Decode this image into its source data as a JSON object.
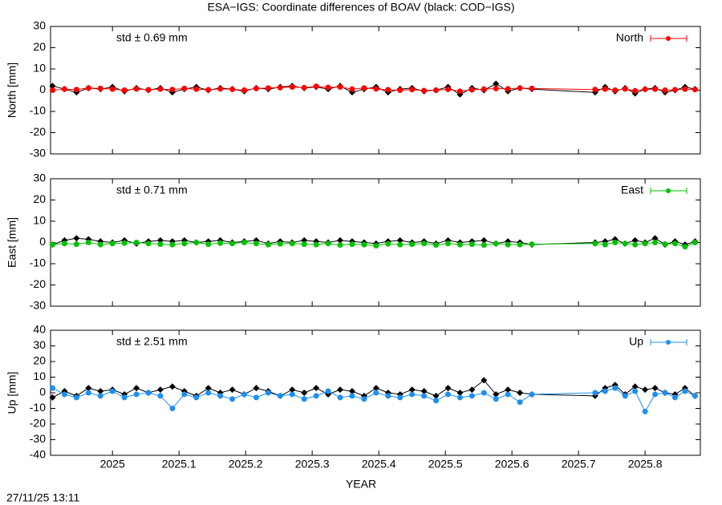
{
  "title": "ESA−IGS: Coordinate differences of BOAV (black: COD−IGS)",
  "timestamp": "27/11/25 13:11",
  "xlabel": "YEAR",
  "xlim": [
    2024.907,
    2025.883
  ],
  "xticks": [
    2025,
    2025.1,
    2025.2,
    2025.3,
    2025.4,
    2025.5,
    2025.6,
    2025.7,
    2025.8
  ],
  "x": [
    2024.91,
    2024.928,
    2024.946,
    2024.964,
    2024.982,
    2025.0,
    2025.018,
    2025.036,
    2025.054,
    2025.072,
    2025.09,
    2025.108,
    2025.126,
    2025.144,
    2025.162,
    2025.18,
    2025.198,
    2025.216,
    2025.234,
    2025.252,
    2025.27,
    2025.288,
    2025.306,
    2025.324,
    2025.342,
    2025.36,
    2025.378,
    2025.396,
    2025.414,
    2025.432,
    2025.45,
    2025.468,
    2025.486,
    2025.504,
    2025.522,
    2025.54,
    2025.558,
    2025.576,
    2025.594,
    2025.612,
    2025.63,
    2025.725,
    2025.74,
    2025.755,
    2025.77,
    2025.785,
    2025.8,
    2025.815,
    2025.83,
    2025.845,
    2025.86,
    2025.875
  ],
  "chart_data": [
    {
      "type": "line",
      "ylabel": "North [mm]",
      "annotation": "std ± 0.69 mm",
      "ylim": [
        -30,
        30
      ],
      "yticks": [
        -30,
        -20,
        -10,
        0,
        10,
        20,
        30
      ],
      "series": [
        {
          "color": "#000000",
          "values": [
            2,
            0.5,
            -1,
            1,
            0.5,
            1.5,
            -0.5,
            1,
            0,
            1,
            -1,
            0.5,
            1.5,
            0,
            1,
            0.5,
            -0.5,
            1,
            0.5,
            1.5,
            2,
            1,
            1.5,
            0.5,
            2,
            -1,
            0.5,
            1.5,
            -1,
            0.5,
            1,
            -0.5,
            0,
            1.5,
            -2,
            1,
            0,
            3,
            -0.5,
            1,
            0.5,
            -1,
            1.5,
            -0.5,
            1,
            -1.5,
            0.5,
            1,
            -1,
            0,
            1.5,
            0.5
          ]
        },
        {
          "name": "North",
          "color": "#ff0000",
          "values": [
            0,
            0.5,
            0.3,
            1,
            0.8,
            0.5,
            0,
            0.6,
            0.2,
            0.5,
            0.3,
            0.8,
            0.5,
            0.2,
            0.6,
            0.4,
            0,
            0.8,
            1,
            1.2,
            1.5,
            1.2,
            1.8,
            1.3,
            1.5,
            0.5,
            1,
            0.6,
            0.2,
            0,
            0.3,
            -0.2,
            0,
            0.4,
            -0.5,
            0.2,
            0.5,
            0.8,
            0.6,
            1,
            0.8,
            0.3,
            0.5,
            0,
            0.6,
            -0.3,
            0.4,
            0.5,
            0,
            0.2,
            0.5,
            0.3
          ]
        }
      ]
    },
    {
      "type": "line",
      "ylabel": "East [mm]",
      "annotation": "std ± 0.71 mm",
      "ylim": [
        -30,
        30
      ],
      "yticks": [
        -30,
        -20,
        -10,
        0,
        10,
        20,
        30
      ],
      "series": [
        {
          "color": "#000000",
          "values": [
            -1,
            1,
            2,
            1.5,
            0.5,
            0,
            1,
            -0.5,
            0.5,
            1,
            0.5,
            1,
            0,
            0.5,
            1,
            0,
            0.5,
            1,
            -0.5,
            0.5,
            0,
            1,
            0.5,
            0,
            1,
            0.5,
            0,
            -0.5,
            0.5,
            1,
            0,
            0.5,
            -0.5,
            1,
            0,
            0.5,
            1,
            -0.5,
            0.5,
            0,
            -1,
            0,
            0.5,
            1.5,
            -0.5,
            1,
            0,
            2,
            -1,
            0.5,
            -1,
            0.5
          ]
        },
        {
          "name": "East",
          "color": "#00c000",
          "values": [
            -1,
            -0.5,
            -0.8,
            0,
            -1,
            -0.5,
            -0.3,
            0,
            -0.5,
            -0.8,
            -1,
            -0.5,
            0,
            -0.8,
            -0.3,
            -0.5,
            0,
            -0.5,
            -1,
            -0.6,
            -0.5,
            -0.8,
            -1,
            -0.5,
            -1.2,
            -0.8,
            -1,
            -1.5,
            -0.6,
            -1,
            -0.8,
            -0.5,
            -1.2,
            -0.5,
            -1,
            -0.8,
            -1.2,
            -0.5,
            -1,
            -1,
            -0.8,
            -0.5,
            -1,
            0,
            -0.5,
            -1,
            -0.5,
            0,
            -0.8,
            -0.5,
            -2,
            0
          ]
        }
      ]
    },
    {
      "type": "line",
      "ylabel": "Up [mm]",
      "annotation": "std ± 2.51 mm",
      "ylim": [
        -40,
        40
      ],
      "yticks": [
        -40,
        -30,
        -20,
        -10,
        0,
        10,
        20,
        30,
        40
      ],
      "series": [
        {
          "color": "#000000",
          "values": [
            -3,
            1,
            -2,
            3,
            1,
            2,
            -1,
            3,
            0,
            2,
            4,
            1,
            -2,
            3,
            0,
            2,
            -1,
            3,
            1,
            -2,
            2,
            0,
            3,
            -1,
            2,
            1,
            -2,
            3,
            0,
            -1,
            2,
            1,
            -2,
            3,
            0,
            2,
            8,
            -1,
            2,
            0,
            -1,
            -2,
            3,
            5,
            -1,
            4,
            2,
            3,
            0,
            -1,
            3,
            -2
          ]
        },
        {
          "name": "Up",
          "color": "#1e8ff0",
          "values": [
            3,
            -1,
            -3,
            0,
            -2,
            1,
            -3,
            -1,
            0,
            -2,
            -10,
            -1,
            -3,
            0,
            -2,
            -4,
            -1,
            -3,
            0,
            -2,
            -1,
            -4,
            -2,
            1,
            -3,
            -2,
            -4,
            0,
            -2,
            -3,
            -1,
            -2,
            -5,
            -1,
            -3,
            -2,
            0,
            -4,
            -1,
            -6,
            -1,
            0,
            1,
            3,
            -2,
            1,
            -12,
            -1,
            0,
            -3,
            1,
            -2
          ]
        }
      ]
    }
  ]
}
